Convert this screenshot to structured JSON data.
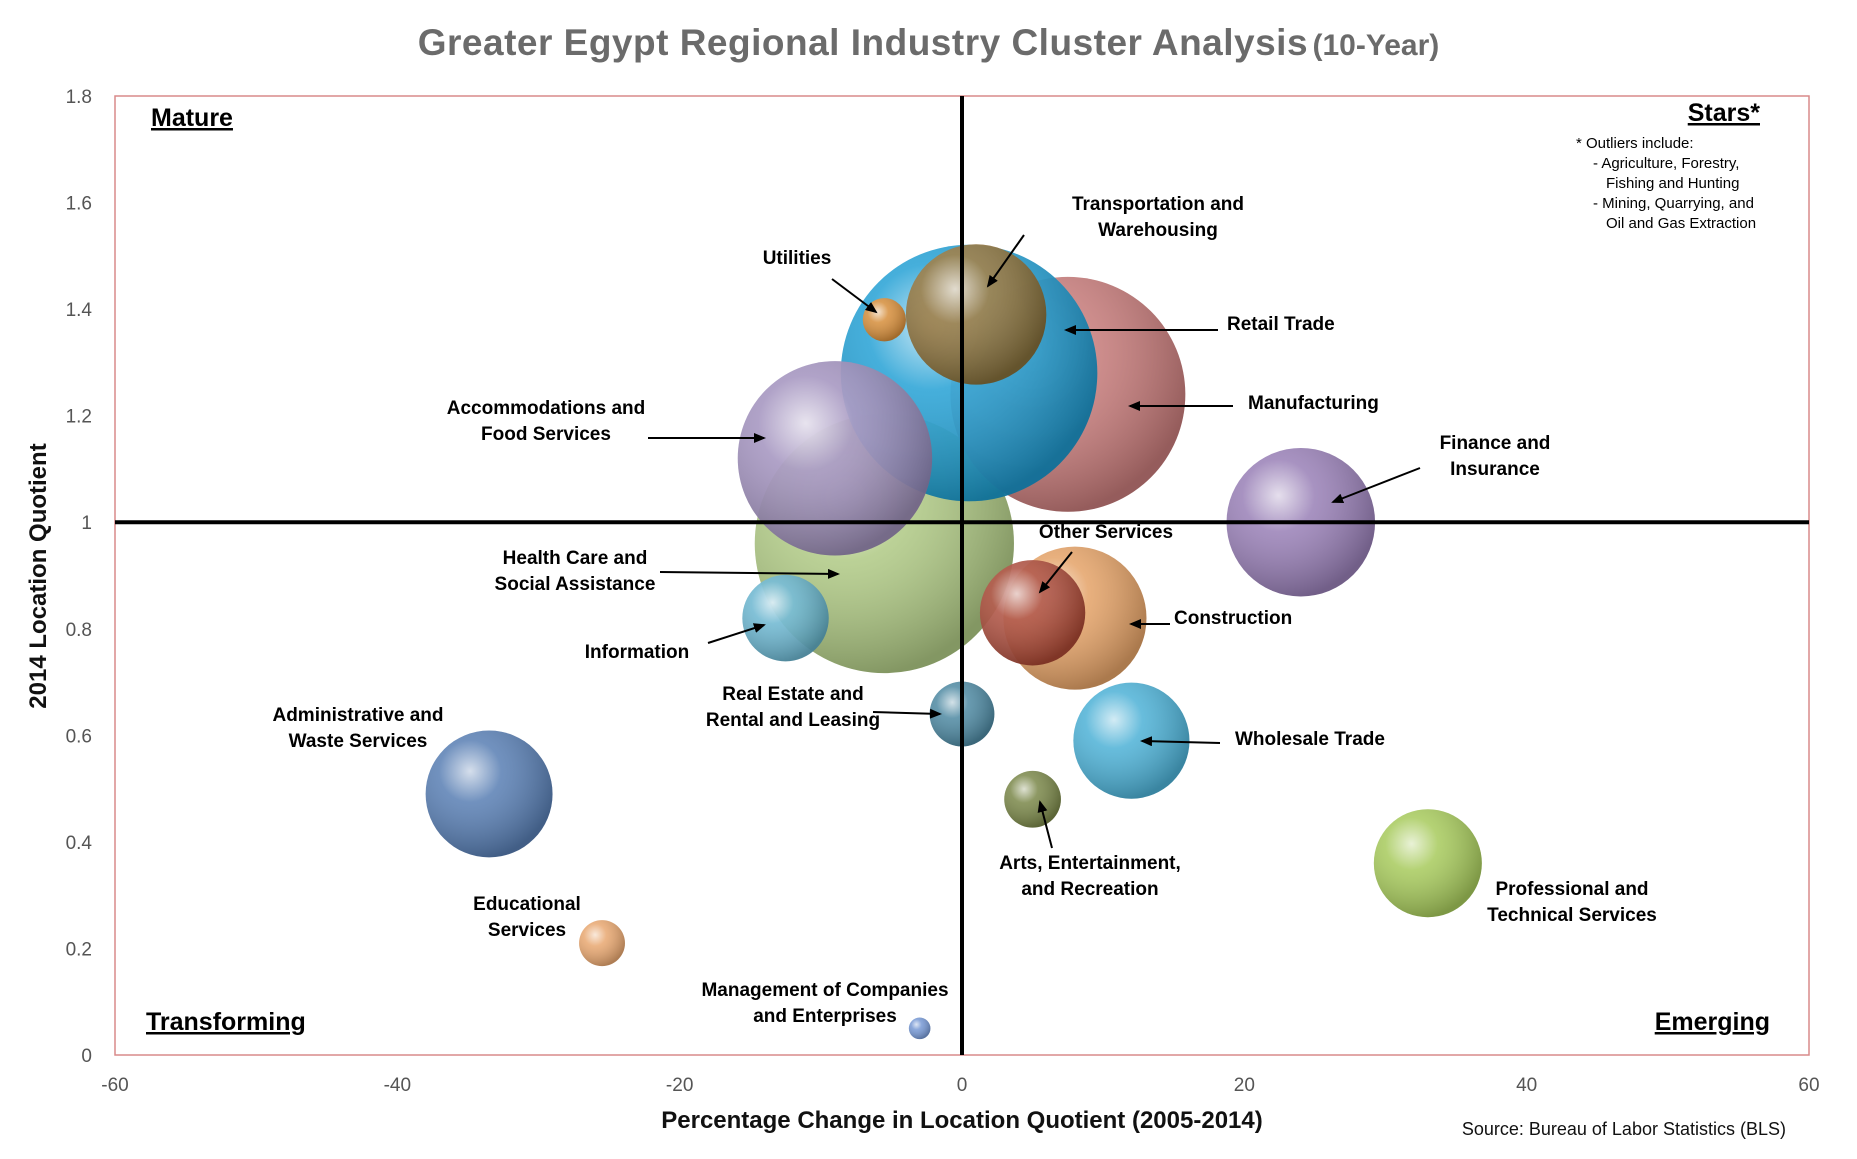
{
  "title": {
    "main": "Greater Egypt Regional Industry Cluster Analysis",
    "suffix": "(10-Year)"
  },
  "chart_data": {
    "type": "scatter",
    "bubble": true,
    "xlabel": "Percentage Change in Location Quotient (2005-2014)",
    "ylabel": "2014 Location Quotient",
    "xlim": [
      -60,
      60
    ],
    "ylim": [
      0,
      1.8
    ],
    "x_ticks": [
      "-60",
      "-40",
      "-20",
      "0",
      "20",
      "40",
      "60"
    ],
    "y_ticks": [
      "0",
      "0.2",
      "0.4",
      "0.6",
      "0.8",
      "1",
      "1.2",
      "1.4",
      "1.6",
      "1.8"
    ],
    "reference_lines": {
      "x": 0,
      "y": 1
    },
    "quadrants": {
      "top_left": "Mature",
      "top_right": "Stars*",
      "bottom_left": "Transforming",
      "bottom_right": "Emerging"
    },
    "outlier_note": [
      "* Outliers include:",
      "- Agriculture, Forestry,",
      "Fishing and Hunting",
      "- Mining, Quarrying, and",
      "Oil and Gas Extraction"
    ],
    "source": "Source: Bureau of Labor Statistics (BLS)",
    "series": [
      {
        "label": [
          "Health Care and",
          "Social Assistance"
        ],
        "x": -5.5,
        "y": 0.96,
        "size": 9.6,
        "color": "#a8c47a"
      },
      {
        "label": [
          "Manufacturing"
        ],
        "x": 7.5,
        "y": 1.24,
        "size": 8.7,
        "color": "#c2706f"
      },
      {
        "label": [
          "Retail Trade"
        ],
        "x": 0.5,
        "y": 1.28,
        "size": 9.5,
        "color": "#1299d1"
      },
      {
        "label": [
          "Accommodations and",
          "Food Services"
        ],
        "x": -9,
        "y": 1.12,
        "size": 7.2,
        "color": "#9a89b9"
      },
      {
        "label": [
          "Transportation and",
          "Warehousing"
        ],
        "x": 1,
        "y": 1.39,
        "size": 5.2,
        "color": "#8c6b30"
      },
      {
        "label": [
          "Utilities"
        ],
        "x": -5.5,
        "y": 1.38,
        "size": 1.6,
        "color": "#e08a2c"
      },
      {
        "label": [
          "Finance and",
          "Insurance"
        ],
        "x": 24,
        "y": 1.0,
        "size": 5.5,
        "color": "#8f74b0"
      },
      {
        "label": [
          "Construction"
        ],
        "x": 8,
        "y": 0.82,
        "size": 5.3,
        "color": "#e29a5a"
      },
      {
        "label": [
          "Other Services"
        ],
        "x": 5,
        "y": 0.83,
        "size": 3.9,
        "color": "#a6402f"
      },
      {
        "label": [
          "Information"
        ],
        "x": -12.5,
        "y": 0.82,
        "size": 3.2,
        "color": "#5fb0cc"
      },
      {
        "label": [
          "Real Estate and",
          "Rental and Leasing"
        ],
        "x": 0,
        "y": 0.64,
        "size": 2.4,
        "color": "#3f7f9a"
      },
      {
        "label": [
          "Wholesale Trade"
        ],
        "x": 12,
        "y": 0.59,
        "size": 4.3,
        "color": "#3eaad2"
      },
      {
        "label": [
          "Arts, Entertainment,",
          "and Recreation"
        ],
        "x": 5,
        "y": 0.48,
        "size": 2.1,
        "color": "#6f7d3a"
      },
      {
        "label": [
          "Administrative and",
          "Waste Services"
        ],
        "x": -33.5,
        "y": 0.49,
        "size": 4.7,
        "color": "#4a73ad"
      },
      {
        "label": [
          "Professional and",
          "Technical Services"
        ],
        "x": 33,
        "y": 0.36,
        "size": 4.0,
        "color": "#9fc64e"
      },
      {
        "label": [
          "Educational",
          "Services"
        ],
        "x": -25.5,
        "y": 0.21,
        "size": 1.7,
        "color": "#e6a064"
      },
      {
        "label": [
          "Management of Companies",
          "and Enterprises"
        ],
        "x": -3,
        "y": 0.05,
        "size": 0.8,
        "color": "#6a8fd0"
      }
    ]
  }
}
